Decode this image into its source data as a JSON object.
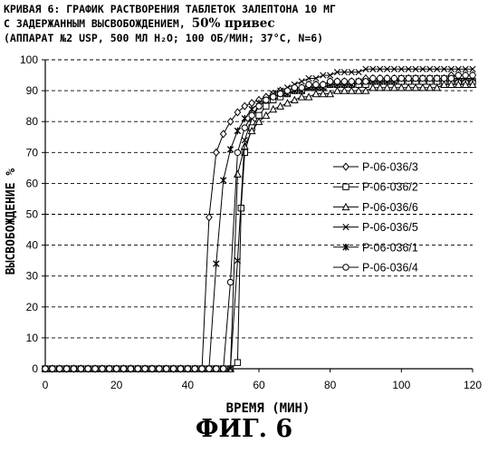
{
  "title": {
    "line1": "КРИВАЯ 6: ГРАФИК РАСТВОРЕНИЯ ТАБЛЕТОК ЗАЛЕПТОНА 10 МГ",
    "line2_prefix": "С ЗАДЕРЖАННЫМ ВЫСВОБОЖДЕНИЕМ,",
    "line2_bold": "50% привес",
    "line3": "(АППАРАТ №2 USP, 500 МЛ H₂O; 100 ОБ/МИН; 37°C, N=6)"
  },
  "figure_label": "ФИГ. 6",
  "chart_data": {
    "type": "line",
    "xlabel": "ВРЕМЯ (МИН)",
    "ylabel": "ВЫСВОБОЖДЕНИЕ %",
    "xlim": [
      0,
      120
    ],
    "ylim": [
      0,
      100
    ],
    "x_ticks": [
      "0",
      "20",
      "40",
      "60",
      "80",
      "100",
      "120"
    ],
    "y_ticks": [
      "0",
      "10",
      "20",
      "30",
      "40",
      "50",
      "60",
      "70",
      "80",
      "90",
      "100"
    ],
    "grid": "horizontal dashed",
    "legend_position": "right",
    "series": [
      {
        "name": "P-06-036/3",
        "marker": "diamond",
        "x": [
          0,
          2,
          4,
          6,
          8,
          10,
          12,
          14,
          16,
          18,
          20,
          22,
          24,
          26,
          28,
          30,
          32,
          34,
          36,
          38,
          40,
          42,
          44,
          46,
          48,
          50,
          52,
          54,
          56,
          58,
          60,
          62,
          64,
          66,
          68,
          70,
          72,
          74,
          76,
          78,
          80,
          82,
          84,
          86,
          88,
          90,
          92,
          94,
          96,
          98,
          100,
          102,
          104,
          106,
          108,
          110,
          112,
          114,
          116,
          118,
          120
        ],
        "y": [
          0,
          0,
          0,
          0,
          0,
          0,
          0,
          0,
          0,
          0,
          0,
          0,
          0,
          0,
          0,
          0,
          0,
          0,
          0,
          0,
          0,
          0,
          0,
          49,
          70,
          76,
          80,
          83,
          85,
          86,
          87,
          88,
          89,
          90,
          90,
          91,
          91,
          92,
          92,
          92,
          93,
          93,
          93,
          93,
          93,
          94,
          94,
          94,
          94,
          94,
          94,
          94,
          94,
          94,
          94,
          94,
          94,
          95,
          95,
          95,
          95
        ]
      },
      {
        "name": "P-06-036/2",
        "marker": "square",
        "x": [
          0,
          2,
          4,
          6,
          8,
          10,
          12,
          14,
          16,
          18,
          20,
          22,
          24,
          26,
          28,
          30,
          32,
          34,
          36,
          38,
          40,
          42,
          44,
          46,
          48,
          50,
          52,
          54,
          55,
          56,
          58,
          60,
          62,
          64,
          66,
          68,
          70,
          72,
          74,
          76,
          78,
          80,
          82,
          84,
          86,
          88,
          90,
          92,
          94,
          96,
          98,
          100,
          102,
          104,
          106,
          108,
          110,
          112,
          114,
          116,
          118,
          120
        ],
        "y": [
          0,
          0,
          0,
          0,
          0,
          0,
          0,
          0,
          0,
          0,
          0,
          0,
          0,
          0,
          0,
          0,
          0,
          0,
          0,
          0,
          0,
          0,
          0,
          0,
          0,
          0,
          0,
          2,
          52,
          70,
          78,
          82,
          85,
          87,
          88,
          89,
          90,
          90,
          91,
          91,
          91,
          92,
          92,
          92,
          92,
          92,
          92,
          93,
          93,
          93,
          93,
          93,
          93,
          93,
          93,
          93,
          93,
          93,
          93,
          93,
          93,
          93
        ]
      },
      {
        "name": "P-06-036/6",
        "marker": "triangle",
        "x": [
          0,
          2,
          4,
          6,
          8,
          10,
          12,
          14,
          16,
          18,
          20,
          22,
          24,
          26,
          28,
          30,
          32,
          34,
          36,
          38,
          40,
          42,
          44,
          46,
          48,
          50,
          52,
          54,
          56,
          58,
          60,
          62,
          64,
          66,
          68,
          70,
          72,
          74,
          76,
          78,
          80,
          82,
          84,
          86,
          88,
          90,
          92,
          94,
          96,
          98,
          100,
          102,
          104,
          106,
          108,
          110,
          112,
          114,
          116,
          118,
          120
        ],
        "y": [
          0,
          0,
          0,
          0,
          0,
          0,
          0,
          0,
          0,
          0,
          0,
          0,
          0,
          0,
          0,
          0,
          0,
          0,
          0,
          0,
          0,
          0,
          0,
          0,
          0,
          0,
          0,
          63,
          72,
          77,
          80,
          82,
          84,
          85,
          86,
          87,
          88,
          88,
          89,
          89,
          89,
          90,
          90,
          90,
          90,
          90,
          91,
          91,
          91,
          91,
          91,
          91,
          91,
          91,
          91,
          91,
          92,
          92,
          92,
          92,
          92
        ]
      },
      {
        "name": "P-06-036/5",
        "marker": "x",
        "x": [
          0,
          2,
          4,
          6,
          8,
          10,
          12,
          14,
          16,
          18,
          20,
          22,
          24,
          26,
          28,
          30,
          32,
          34,
          36,
          38,
          40,
          42,
          44,
          46,
          48,
          50,
          52,
          54,
          56,
          58,
          60,
          62,
          64,
          66,
          68,
          70,
          72,
          74,
          76,
          78,
          80,
          82,
          84,
          86,
          88,
          90,
          92,
          94,
          96,
          98,
          100,
          102,
          104,
          106,
          108,
          110,
          112,
          114,
          116,
          118,
          120
        ],
        "y": [
          0,
          0,
          0,
          0,
          0,
          0,
          0,
          0,
          0,
          0,
          0,
          0,
          0,
          0,
          0,
          0,
          0,
          0,
          0,
          0,
          0,
          0,
          0,
          0,
          0,
          0,
          0,
          35,
          74,
          81,
          85,
          87,
          89,
          90,
          91,
          92,
          93,
          94,
          94,
          95,
          95,
          96,
          96,
          96,
          96,
          97,
          97,
          97,
          97,
          97,
          97,
          97,
          97,
          97,
          97,
          97,
          97,
          97,
          97,
          97,
          97
        ]
      },
      {
        "name": "P-06-036/1",
        "marker": "star",
        "x": [
          0,
          2,
          4,
          6,
          8,
          10,
          12,
          14,
          16,
          18,
          20,
          22,
          24,
          26,
          28,
          30,
          32,
          34,
          36,
          38,
          40,
          42,
          44,
          46,
          48,
          50,
          52,
          54,
          56,
          58,
          60,
          62,
          64,
          66,
          68,
          70,
          72,
          74,
          76,
          78,
          80,
          82,
          84,
          86,
          88,
          90,
          92,
          94,
          96,
          98,
          100,
          102,
          104,
          106,
          108,
          110,
          112,
          114,
          116,
          118,
          120
        ],
        "y": [
          0,
          0,
          0,
          0,
          0,
          0,
          0,
          0,
          0,
          0,
          0,
          0,
          0,
          0,
          0,
          0,
          0,
          0,
          0,
          0,
          0,
          0,
          0,
          0,
          34,
          61,
          71,
          77,
          81,
          84,
          86,
          87,
          88,
          89,
          89,
          90,
          90,
          91,
          91,
          91,
          92,
          92,
          92,
          92,
          93,
          93,
          93,
          93,
          93,
          93,
          94,
          94,
          94,
          94,
          94,
          94,
          94,
          94,
          94,
          94,
          94
        ]
      },
      {
        "name": "P-06-036/4",
        "marker": "circle",
        "x": [
          0,
          2,
          4,
          6,
          8,
          10,
          12,
          14,
          16,
          18,
          20,
          22,
          24,
          26,
          28,
          30,
          32,
          34,
          36,
          38,
          40,
          42,
          44,
          46,
          48,
          50,
          52,
          54,
          56,
          58,
          60,
          62,
          64,
          66,
          68,
          70,
          72,
          74,
          76,
          78,
          80,
          82,
          84,
          86,
          88,
          90,
          92,
          94,
          96,
          98,
          100,
          102,
          104,
          106,
          108,
          110,
          112,
          114,
          116,
          118,
          120
        ],
        "y": [
          0,
          0,
          0,
          0,
          0,
          0,
          0,
          0,
          0,
          0,
          0,
          0,
          0,
          0,
          0,
          0,
          0,
          0,
          0,
          0,
          0,
          0,
          0,
          0,
          0,
          0,
          28,
          70,
          78,
          82,
          85,
          87,
          88,
          89,
          90,
          91,
          91,
          92,
          92,
          92,
          93,
          93,
          93,
          93,
          93,
          93,
          94,
          94,
          94,
          94,
          94,
          94,
          94,
          94,
          94,
          94,
          94,
          94,
          95,
          95,
          95
        ]
      }
    ]
  }
}
